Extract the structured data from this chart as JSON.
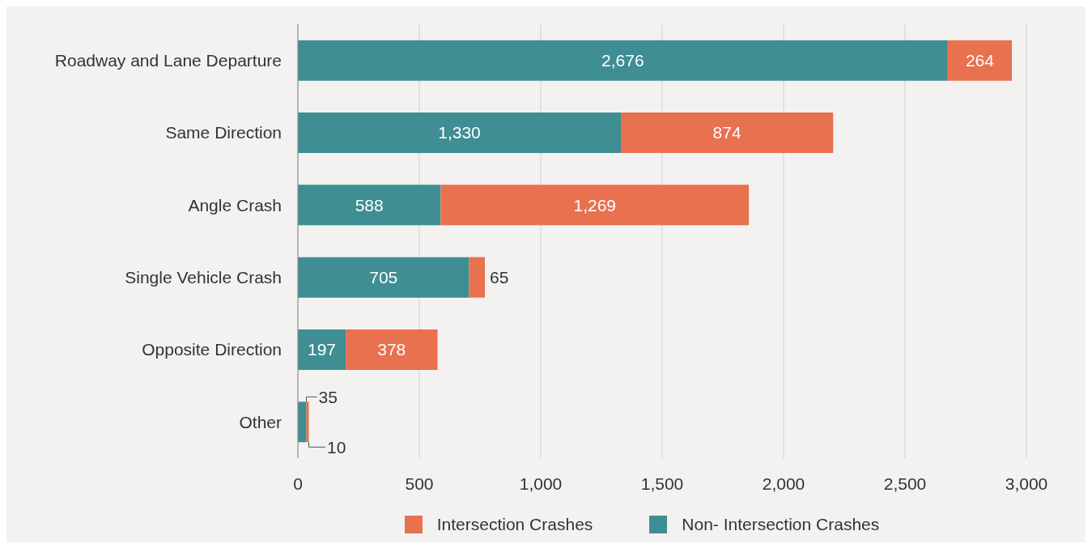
{
  "chart_data": {
    "type": "bar",
    "orientation": "horizontal",
    "stacked": true,
    "categories": [
      "Roadway and Lane Departure",
      "Same Direction",
      "Angle Crash",
      "Single Vehicle Crash",
      "Opposite Direction",
      "Other"
    ],
    "series": [
      {
        "name": "Non- Intersection Crashes",
        "color": "#3e8e93",
        "values": [
          2676,
          1330,
          588,
          705,
          197,
          35
        ],
        "value_labels": [
          "2,676",
          "1,330",
          "588",
          "705",
          "197",
          "35"
        ]
      },
      {
        "name": "Intersection Crashes",
        "color": "#e8714f",
        "values": [
          264,
          874,
          1269,
          65,
          378,
          10
        ],
        "value_labels": [
          "264",
          "874",
          "1,269",
          "65",
          "378",
          "10"
        ]
      }
    ],
    "xlim": [
      0,
      3000
    ],
    "xticks": [
      0,
      500,
      {
        "value": 1000,
        "label": "1,000"
      },
      {
        "value": 1500,
        "label": "1,500"
      },
      {
        "value": 2000,
        "label": "2,000"
      },
      {
        "value": 2500,
        "label": "2,500"
      },
      {
        "value": 3000,
        "label": "3,000"
      }
    ],
    "grid": "x",
    "legend": "bottom"
  }
}
